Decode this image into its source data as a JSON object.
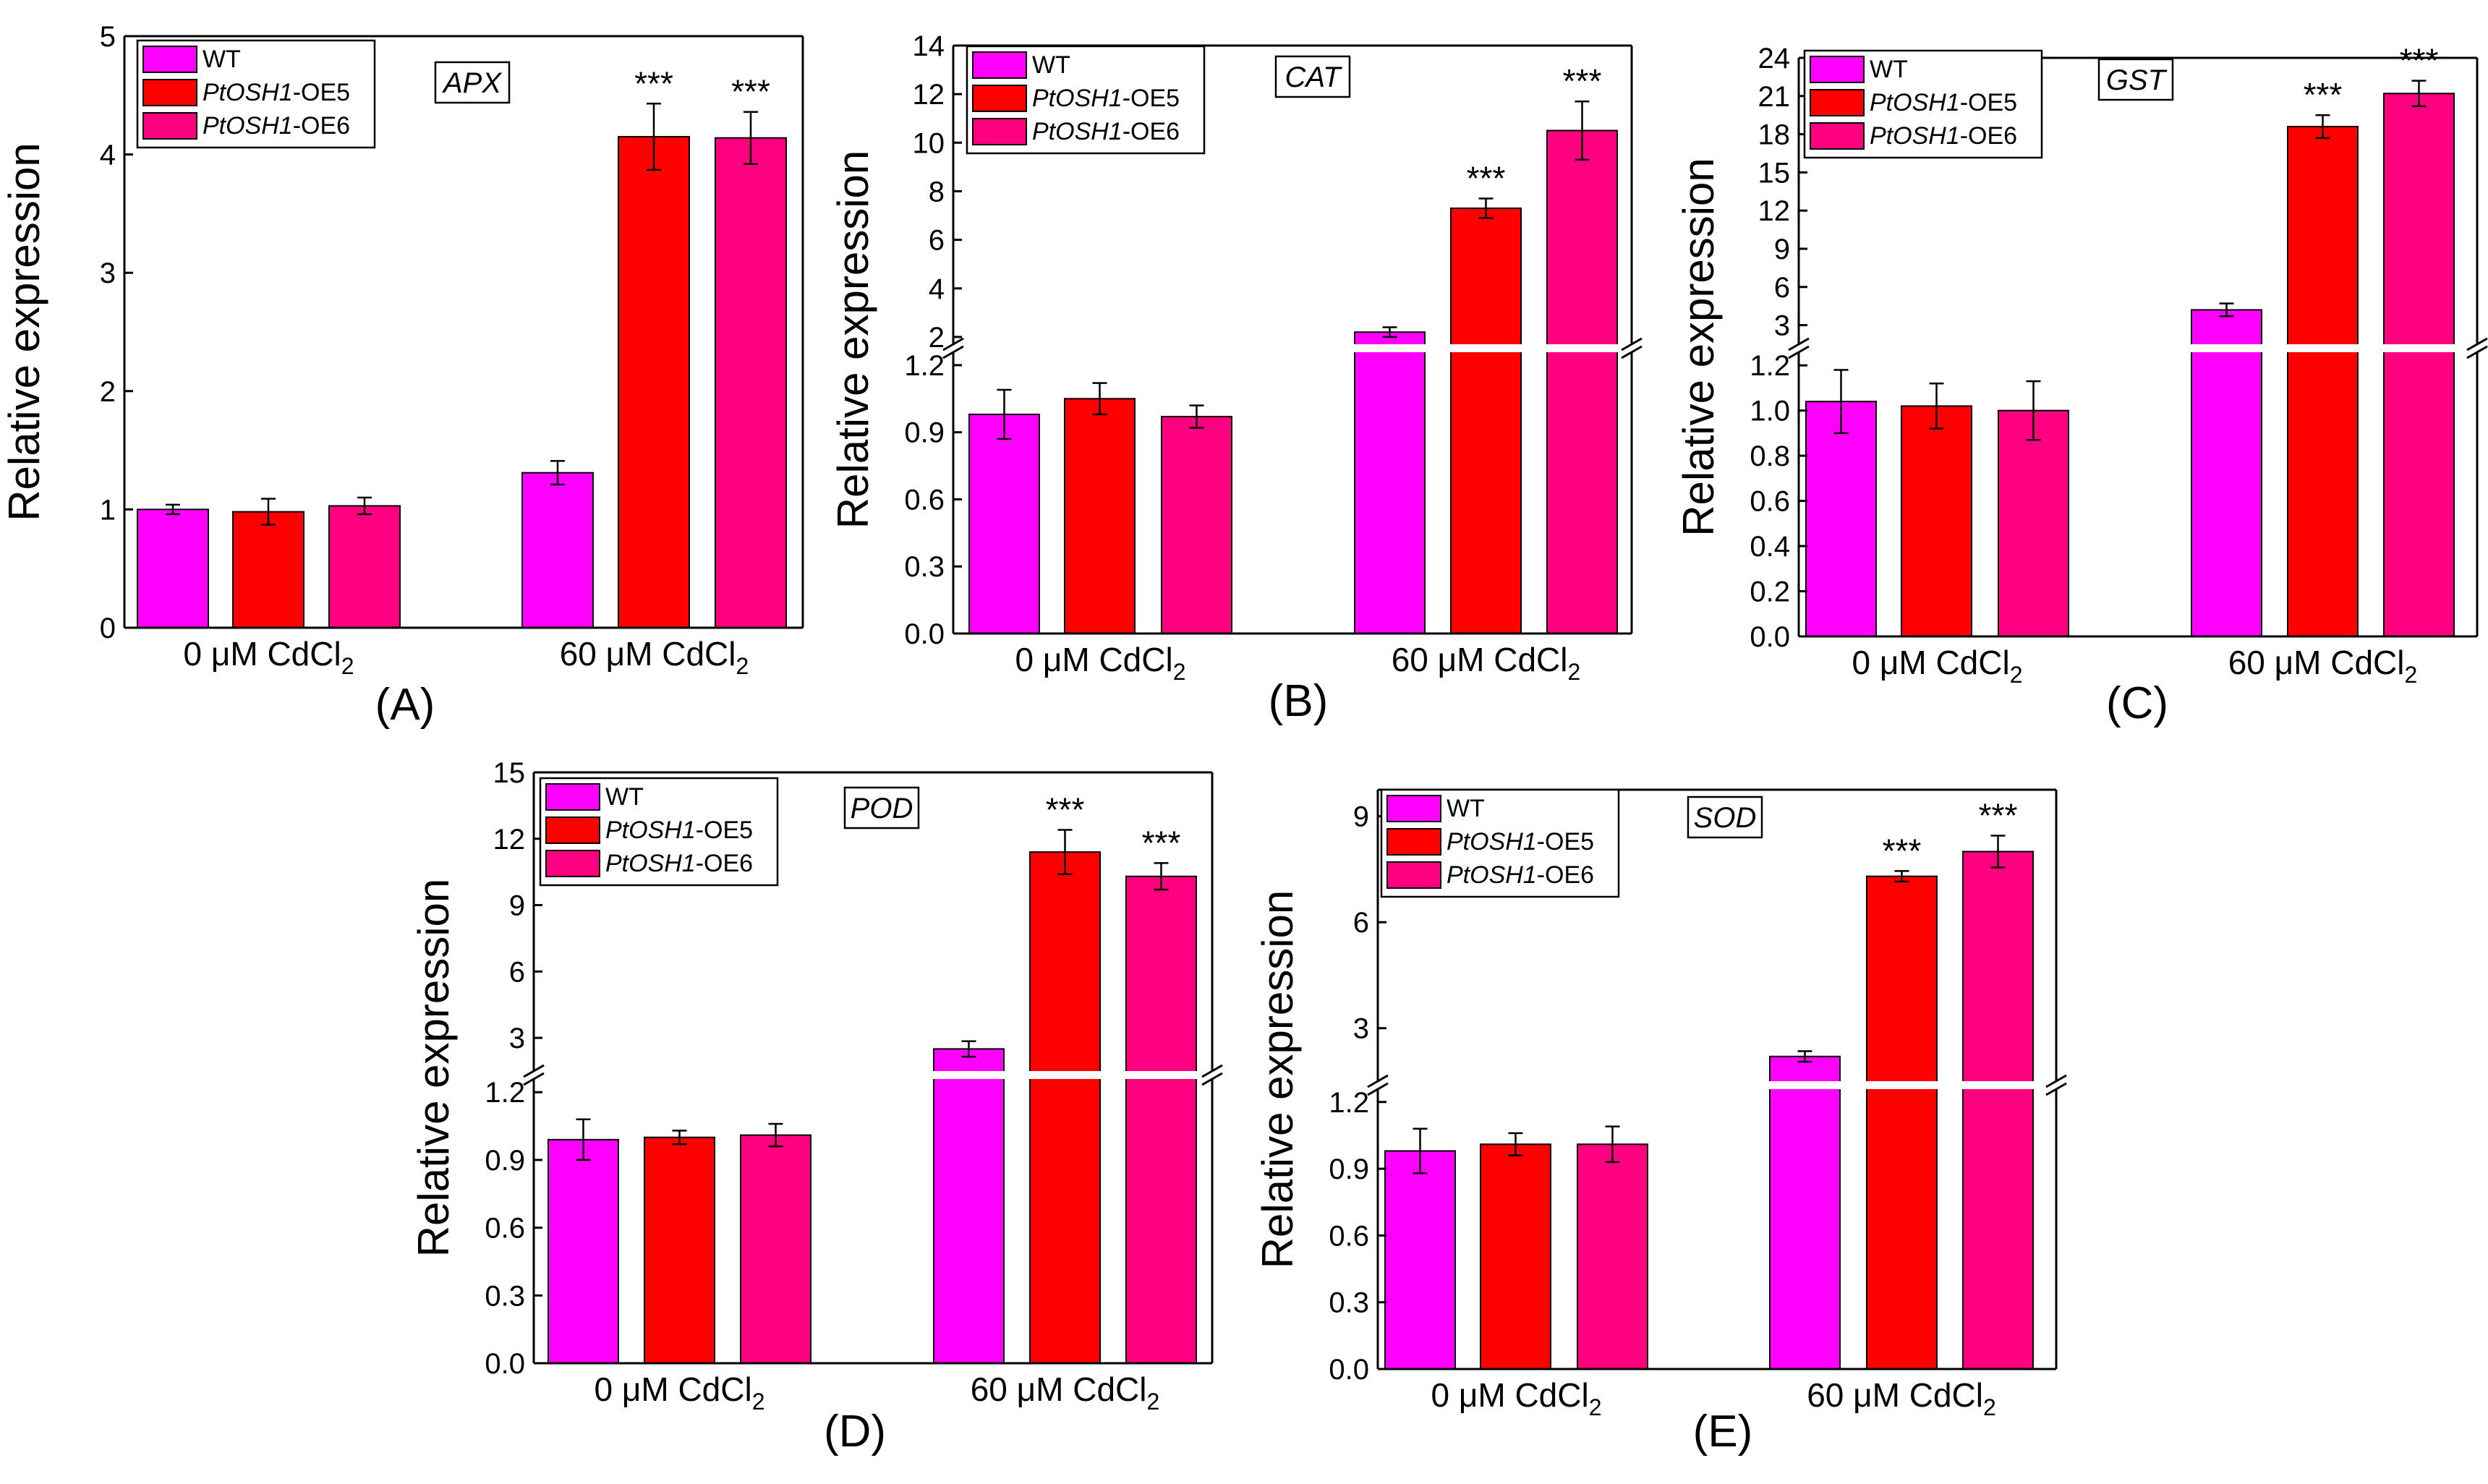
{
  "figure": {
    "colors": {
      "WT": "#FF00FF",
      "OE5": "#FF0000",
      "OE6": "#FF0080",
      "axis": "#000000"
    },
    "legend": [
      {
        "key": "WT",
        "italic": "",
        "suffix": "WT"
      },
      {
        "key": "OE5",
        "italic": "PtOSH1",
        "suffix": "-OE5"
      },
      {
        "key": "OE6",
        "italic": "PtOSH1",
        "suffix": "-OE6"
      }
    ],
    "group_labels": [
      {
        "prefix": "0 μM CdCl",
        "sub": "2"
      },
      {
        "prefix": "60 μM CdCl",
        "sub": "2"
      }
    ],
    "ylabel": "Relative expression",
    "significance": "***"
  },
  "chart_data": [
    {
      "type": "bar",
      "panel_label": "(A)",
      "gene": "APX",
      "ylabel": "Relative expression",
      "categories": [
        "0 μM CdCl2",
        "60 μM CdCl2"
      ],
      "broken_axis": false,
      "ylim": [
        0,
        5
      ],
      "yticks": [
        "0",
        "1",
        "2",
        "3",
        "4",
        "5"
      ],
      "series": [
        {
          "name": "WT",
          "values": [
            1.0,
            1.31
          ],
          "errors": [
            0.04,
            0.1
          ],
          "sig": [
            "",
            ""
          ]
        },
        {
          "name": "PtOSH1-OE5",
          "values": [
            0.98,
            4.15
          ],
          "errors": [
            0.11,
            0.28
          ],
          "sig": [
            "",
            "***"
          ]
        },
        {
          "name": "PtOSH1-OE6",
          "values": [
            1.03,
            4.14
          ],
          "errors": [
            0.07,
            0.22
          ],
          "sig": [
            "",
            "***"
          ]
        }
      ]
    },
    {
      "type": "bar",
      "panel_label": "(B)",
      "gene": "CAT",
      "ylabel": "Relative expression",
      "categories": [
        "0 μM CdCl2",
        "60 μM CdCl2"
      ],
      "broken_axis": true,
      "lower_range": [
        0,
        1.3
      ],
      "upper_range": [
        1.7,
        14
      ],
      "lower_ticks": [
        "0.0",
        "0.3",
        "0.6",
        "0.9",
        "1.2"
      ],
      "upper_ticks": [
        "2",
        "4",
        "6",
        "8",
        "10",
        "12",
        "14"
      ],
      "series": [
        {
          "name": "WT",
          "values": [
            0.98,
            2.2
          ],
          "errors": [
            0.11,
            0.2
          ],
          "sig": [
            "",
            ""
          ]
        },
        {
          "name": "PtOSH1-OE5",
          "values": [
            1.05,
            7.3
          ],
          "errors": [
            0.07,
            0.4
          ],
          "sig": [
            "",
            "***"
          ]
        },
        {
          "name": "PtOSH1-OE6",
          "values": [
            0.97,
            10.5
          ],
          "errors": [
            0.05,
            1.2
          ],
          "sig": [
            "",
            "***"
          ]
        }
      ]
    },
    {
      "type": "bar",
      "panel_label": "(C)",
      "gene": "GST",
      "ylabel": "Relative expression",
      "categories": [
        "0 μM CdCl2",
        "60 μM CdCl2"
      ],
      "broken_axis": true,
      "lower_range": [
        0,
        1.3
      ],
      "upper_range": [
        1.5,
        24
      ],
      "lower_ticks": [
        "0.0",
        "0.2",
        "0.4",
        "0.6",
        "0.8",
        "1.0",
        "1.2"
      ],
      "upper_ticks": [
        "3",
        "6",
        "9",
        "12",
        "15",
        "18",
        "21",
        "24"
      ],
      "series": [
        {
          "name": "WT",
          "values": [
            1.04,
            4.2
          ],
          "errors": [
            0.14,
            0.5
          ],
          "sig": [
            "",
            ""
          ]
        },
        {
          "name": "PtOSH1-OE5",
          "values": [
            1.02,
            18.6
          ],
          "errors": [
            0.1,
            0.9
          ],
          "sig": [
            "",
            "***"
          ]
        },
        {
          "name": "PtOSH1-OE6",
          "values": [
            1.0,
            21.2
          ],
          "errors": [
            0.13,
            1.0
          ],
          "sig": [
            "",
            "***"
          ]
        }
      ]
    },
    {
      "type": "bar",
      "panel_label": "(D)",
      "gene": "POD",
      "ylabel": "Relative expression",
      "categories": [
        "0 μM CdCl2",
        "60 μM CdCl2"
      ],
      "broken_axis": true,
      "lower_range": [
        0,
        1.3
      ],
      "upper_range": [
        1.5,
        15
      ],
      "lower_ticks": [
        "0.0",
        "0.3",
        "0.6",
        "0.9",
        "1.2"
      ],
      "upper_ticks": [
        "3",
        "6",
        "9",
        "12",
        "15"
      ],
      "series": [
        {
          "name": "WT",
          "values": [
            0.99,
            2.5
          ],
          "errors": [
            0.09,
            0.35
          ],
          "sig": [
            "",
            ""
          ]
        },
        {
          "name": "PtOSH1-OE5",
          "values": [
            1.0,
            11.4
          ],
          "errors": [
            0.03,
            1.0
          ],
          "sig": [
            "",
            "***"
          ]
        },
        {
          "name": "PtOSH1-OE6",
          "values": [
            1.01,
            10.3
          ],
          "errors": [
            0.05,
            0.6
          ],
          "sig": [
            "",
            "***"
          ]
        }
      ]
    },
    {
      "type": "bar",
      "panel_label": "(E)",
      "gene": "SOD",
      "ylabel": "Relative expression",
      "categories": [
        "0 μM CdCl2",
        "60 μM CdCl2"
      ],
      "broken_axis": true,
      "lower_range": [
        0,
        1.3
      ],
      "upper_range": [
        1.5,
        9.75
      ],
      "lower_ticks": [
        "0.0",
        "0.3",
        "0.6",
        "0.9",
        "1.2"
      ],
      "upper_ticks": [
        "3",
        "6",
        "9"
      ],
      "series": [
        {
          "name": "WT",
          "values": [
            0.98,
            2.2
          ],
          "errors": [
            0.1,
            0.15
          ],
          "sig": [
            "",
            ""
          ]
        },
        {
          "name": "PtOSH1-OE5",
          "values": [
            1.01,
            7.3
          ],
          "errors": [
            0.05,
            0.15
          ],
          "sig": [
            "",
            "***"
          ]
        },
        {
          "name": "PtOSH1-OE6",
          "values": [
            1.01,
            8.0
          ],
          "errors": [
            0.08,
            0.45
          ],
          "sig": [
            "",
            "***"
          ]
        }
      ]
    }
  ]
}
